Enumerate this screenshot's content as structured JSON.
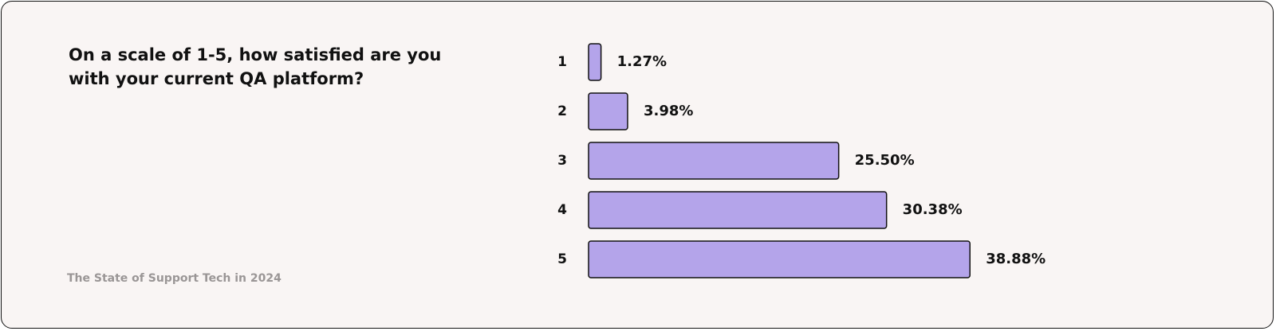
{
  "chart_data": {
    "type": "bar",
    "orientation": "horizontal",
    "title": "On a scale of 1-5, how satisfied are you with your current QA platform?",
    "source": "The State of Support Tech in 2024",
    "categories": [
      "1",
      "2",
      "3",
      "4",
      "5"
    ],
    "values": [
      1.27,
      3.98,
      25.5,
      30.38,
      38.88
    ],
    "value_labels": [
      "1.27%",
      "3.98%",
      "25.50%",
      "30.38%",
      "38.88%"
    ],
    "color": "#b4a4ea"
  }
}
